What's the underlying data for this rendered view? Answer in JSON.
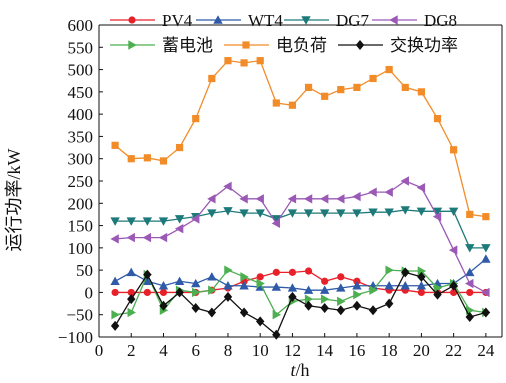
{
  "chart_data": {
    "type": "line",
    "x": [
      1,
      2,
      3,
      4,
      5,
      6,
      7,
      8,
      9,
      10,
      11,
      12,
      13,
      14,
      15,
      16,
      17,
      18,
      19,
      20,
      21,
      22,
      23,
      24
    ],
    "xlabel": "t/h",
    "xlabel_italic": "t",
    "xlabel_unit": "/h",
    "ylabel": "运行功率/kW",
    "xlim": [
      0,
      25
    ],
    "ylim": [
      -100,
      600
    ],
    "xticks": [
      0,
      2,
      4,
      6,
      8,
      10,
      12,
      14,
      16,
      18,
      20,
      22,
      24
    ],
    "yticks": [
      -100,
      -50,
      0,
      50,
      100,
      150,
      200,
      250,
      300,
      350,
      400,
      450,
      500,
      550,
      600
    ],
    "grid": false,
    "legend_position": "top",
    "series": [
      {
        "name": "PV4",
        "color": "#e8202a",
        "marker": "circle",
        "values": [
          0,
          0,
          0,
          0,
          0,
          0,
          5,
          10,
          25,
          35,
          45,
          45,
          48,
          25,
          35,
          25,
          10,
          5,
          5,
          0,
          0,
          0,
          0,
          0
        ]
      },
      {
        "name": "WT4",
        "color": "#2e5aa8",
        "marker": "triangle-up",
        "values": [
          25,
          45,
          25,
          15,
          25,
          20,
          35,
          15,
          15,
          12,
          12,
          10,
          5,
          5,
          10,
          15,
          15,
          15,
          15,
          15,
          20,
          20,
          45,
          75
        ]
      },
      {
        "name": "DG7",
        "color": "#1e7a7a",
        "marker": "triangle-down",
        "values": [
          160,
          160,
          160,
          160,
          165,
          170,
          178,
          183,
          178,
          178,
          165,
          178,
          178,
          178,
          178,
          178,
          180,
          180,
          185,
          182,
          182,
          182,
          100,
          100
        ]
      },
      {
        "name": "DG8",
        "color": "#9b59b6",
        "marker": "triangle-left",
        "values": [
          120,
          123,
          123,
          123,
          143,
          165,
          210,
          238,
          210,
          210,
          155,
          210,
          210,
          210,
          210,
          215,
          225,
          225,
          250,
          235,
          170,
          95,
          20,
          0
        ]
      },
      {
        "name": "蓄电池",
        "color": "#4caf50",
        "marker": "triangle-right",
        "values": [
          -50,
          -45,
          40,
          -40,
          5,
          0,
          5,
          50,
          35,
          20,
          -50,
          -20,
          -15,
          -15,
          -20,
          -5,
          5,
          50,
          48,
          48,
          10,
          20,
          -40,
          -45
        ]
      },
      {
        "name": "电负荷",
        "color": "#f28c28",
        "marker": "square",
        "values": [
          330,
          300,
          302,
          295,
          325,
          390,
          480,
          520,
          515,
          520,
          425,
          420,
          460,
          440,
          455,
          460,
          480,
          500,
          460,
          450,
          390,
          320,
          175,
          170
        ]
      },
      {
        "name": "交换功率",
        "color": "#111111",
        "marker": "diamond",
        "values": [
          -75,
          -15,
          40,
          -30,
          0,
          -35,
          -45,
          -10,
          -45,
          -65,
          -95,
          -10,
          -30,
          -35,
          -40,
          -30,
          -40,
          -25,
          45,
          35,
          -5,
          15,
          -55,
          -45
        ]
      }
    ]
  }
}
